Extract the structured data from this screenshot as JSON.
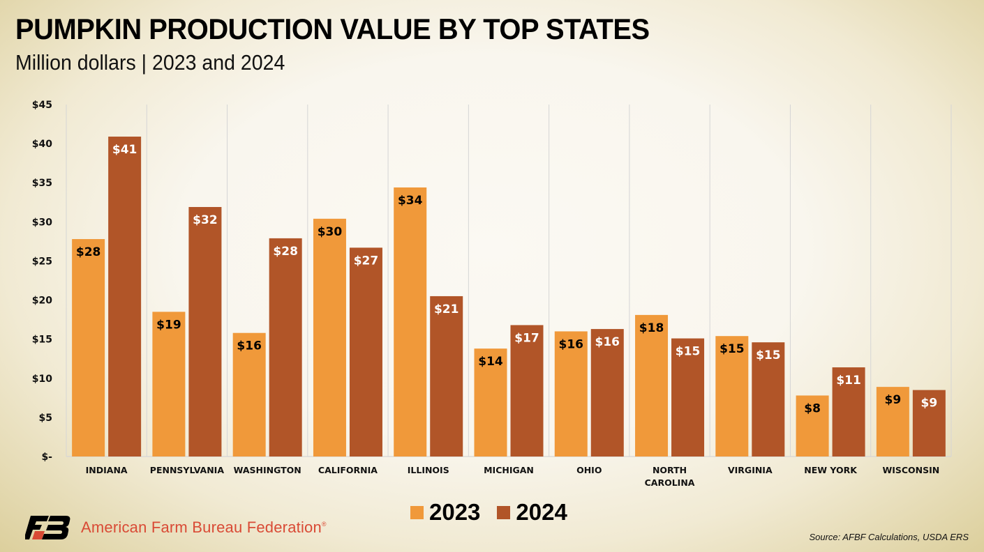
{
  "header": {
    "title": "PUMPKIN PRODUCTION VALUE BY TOP STATES",
    "subtitle": "Million dollars | 2023 and 2024"
  },
  "colors": {
    "series_2023": "#f0993a",
    "series_2024": "#b15528",
    "label_2023": "#000000",
    "label_2024": "#ffffff",
    "gridline": "#d5d5d5",
    "brand_red": "#d94a35"
  },
  "chart_data": {
    "type": "bar",
    "title": "PUMPKIN PRODUCTION VALUE BY TOP STATES",
    "subtitle": "Million dollars | 2023 and 2024",
    "xlabel": "",
    "ylabel": "Million dollars",
    "ylim": [
      0,
      45
    ],
    "yticks": [
      0,
      5,
      10,
      15,
      20,
      25,
      30,
      35,
      40,
      45
    ],
    "ytick_labels": [
      "$-",
      "$5",
      "$10",
      "$15",
      "$20",
      "$25",
      "$30",
      "$35",
      "$40",
      "$45"
    ],
    "grid": "vertical category separators",
    "legend_position": "bottom-center",
    "categories": [
      "INDIANA",
      "PENNSYLVANIA",
      "WASHINGTON",
      "CALIFORNIA",
      "ILLINOIS",
      "MICHIGAN",
      "OHIO",
      "NORTH CAROLINA",
      "VIRGINIA",
      "NEW YORK",
      "WISCONSIN"
    ],
    "category_lines": [
      [
        "INDIANA"
      ],
      [
        "PENNSYLVANIA"
      ],
      [
        "WASHINGTON"
      ],
      [
        "CALIFORNIA"
      ],
      [
        "ILLINOIS"
      ],
      [
        "MICHIGAN"
      ],
      [
        "OHIO"
      ],
      [
        "NORTH",
        "CAROLINA"
      ],
      [
        "VIRGINIA"
      ],
      [
        "NEW YORK"
      ],
      [
        "WISCONSIN"
      ]
    ],
    "series": [
      {
        "name": "2023",
        "values": [
          27.8,
          18.5,
          15.8,
          30.4,
          34.4,
          13.8,
          16.0,
          18.1,
          15.4,
          7.8,
          8.9
        ],
        "labels": [
          "$28",
          "$19",
          "$16",
          "$30",
          "$34",
          "$14",
          "$16",
          "$18",
          "$15",
          "$8",
          "$9"
        ]
      },
      {
        "name": "2024",
        "values": [
          40.9,
          31.9,
          27.9,
          26.7,
          20.5,
          16.8,
          16.3,
          15.1,
          14.6,
          11.4,
          8.5
        ],
        "labels": [
          "$41",
          "$32",
          "$28",
          "$27",
          "$21",
          "$17",
          "$16",
          "$15",
          "$15",
          "$11",
          "$9"
        ]
      }
    ]
  },
  "legend": [
    {
      "label": "2023"
    },
    {
      "label": "2024"
    }
  ],
  "footer": {
    "brand": "American Farm Bureau Federation",
    "brand_mark": "®",
    "source": "Source: AFBF Calculations, USDA ERS"
  }
}
